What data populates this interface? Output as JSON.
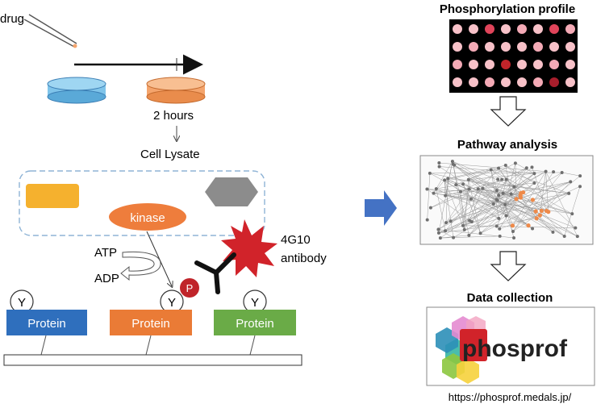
{
  "left": {
    "drug_label": "drug",
    "time_label": "2 hours",
    "lysate_label": "Cell Lysate",
    "kinase_label": "kinase",
    "atp_label": "ATP",
    "adp_label": "ADP",
    "phospho_label": "P",
    "antibody_line1": "4G10",
    "antibody_line2": "antibody",
    "tyrosine_label": "Y",
    "protein_labels": [
      "Protein",
      "Protein",
      "Protein"
    ]
  },
  "right": {
    "profile_title": "Phosphorylation profile",
    "pathway_title": "Pathway analysis",
    "collection_title": "Data collection",
    "logo_text": "phosprof",
    "url": "https://phosprof.medals.jp/"
  },
  "colors": {
    "dish_blue": "#7fc4ea",
    "dish_orange": "#f4a46c",
    "kinase_orange": "#ee7d3c",
    "protein_blue": "#2f6fbd",
    "protein_orange": "#ea7b36",
    "protein_green": "#6aab47",
    "phospho_red": "#c0242a",
    "arrow_blue": "#4472c4",
    "antibody_red": "#d1232a"
  }
}
